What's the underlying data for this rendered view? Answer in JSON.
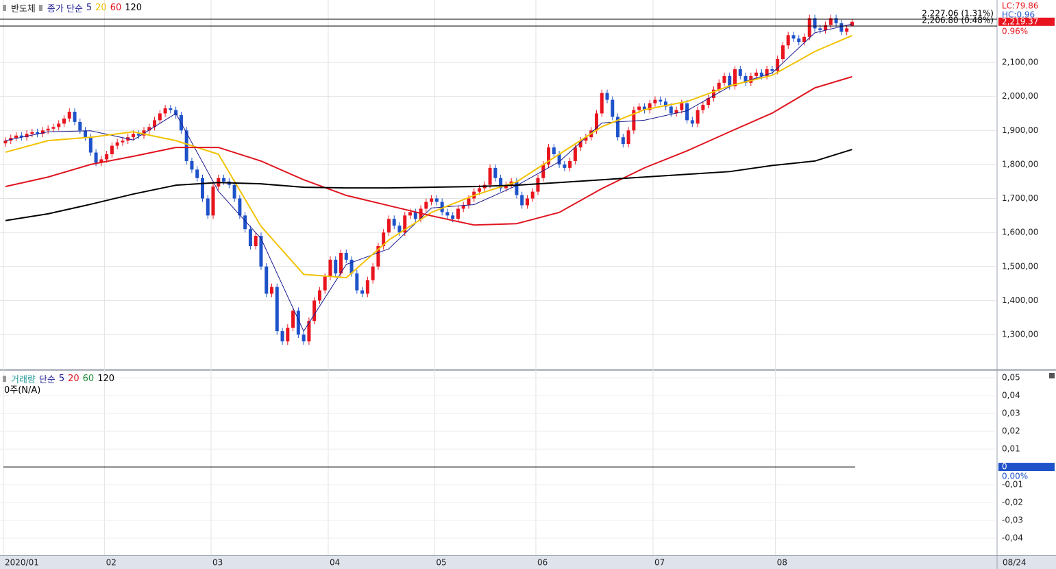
{
  "chart_data": [
    {
      "type": "candlestick",
      "name": "반도체",
      "legend_label": "종가 단순",
      "categories": [
        "2020/01",
        null,
        null,
        null,
        null,
        null,
        null,
        null,
        null,
        null,
        null,
        null,
        null,
        null,
        null,
        null,
        null,
        null,
        null,
        "02",
        null,
        null,
        null,
        null,
        null,
        null,
        null,
        null,
        null,
        null,
        null,
        null,
        null,
        null,
        null,
        null,
        null,
        null,
        null,
        "03",
        null,
        null,
        null,
        null,
        null,
        null,
        null,
        null,
        null,
        null,
        null,
        null,
        null,
        null,
        null,
        null,
        null,
        null,
        null,
        null,
        null,
        "04",
        null,
        null,
        null,
        null,
        null,
        null,
        null,
        null,
        null,
        null,
        null,
        null,
        null,
        null,
        null,
        null,
        null,
        null,
        null,
        "05",
        null,
        null,
        null,
        null,
        null,
        null,
        null,
        null,
        null,
        null,
        null,
        null,
        null,
        null,
        null,
        null,
        null,
        null,
        "06",
        null,
        null,
        null,
        null,
        null,
        null,
        null,
        null,
        null,
        null,
        null,
        null,
        null,
        null,
        null,
        null,
        null,
        null,
        null,
        null,
        null,
        "07",
        null,
        null,
        null,
        null,
        null,
        null,
        null,
        null,
        null,
        null,
        null,
        null,
        null,
        null,
        null,
        null,
        null,
        null,
        null,
        null,
        null,
        null,
        "08",
        null,
        null,
        null,
        null,
        null,
        null,
        null,
        null,
        null,
        null,
        null,
        null,
        null,
        null
      ],
      "open": [
        1862,
        1870,
        1878,
        1885,
        1880,
        1890,
        1895,
        1890,
        1900,
        1905,
        1910,
        1920,
        1935,
        1955,
        1925,
        1900,
        1880,
        1835,
        1805,
        1815,
        1830,
        1855,
        1865,
        1870,
        1880,
        1890,
        1885,
        1900,
        1910,
        1930,
        1950,
        1965,
        1960,
        1945,
        1900,
        1810,
        1785,
        1760,
        1700,
        1650,
        1735,
        1760,
        1750,
        1740,
        1700,
        1650,
        1610,
        1560,
        1590,
        1500,
        1420,
        1440,
        1310,
        1280,
        1320,
        1370,
        1300,
        1280,
        1340,
        1400,
        1430,
        1470,
        1520,
        1480,
        1540,
        1520,
        1480,
        1430,
        1420,
        1460,
        1500,
        1560,
        1600,
        1640,
        1620,
        1600,
        1650,
        1660,
        1640,
        1670,
        1690,
        1700,
        1690,
        1660,
        1650,
        1640,
        1670,
        1680,
        1700,
        1720,
        1730,
        1740,
        1790,
        1760,
        1730,
        1740,
        1750,
        1710,
        1680,
        1700,
        1720,
        1760,
        1800,
        1850,
        1830,
        1800,
        1790,
        1810,
        1850,
        1870,
        1880,
        1900,
        1950,
        2010,
        1990,
        1940,
        1880,
        1860,
        1900,
        1960,
        1970,
        1960,
        1980,
        1990,
        1985,
        1970,
        1950,
        1960,
        1980,
        1930,
        1920,
        1960,
        1975,
        1995,
        2020,
        2040,
        2060,
        2030,
        2080,
        2060,
        2040,
        2060,
        2070,
        2060,
        2080,
        2075,
        2110,
        2150,
        2180,
        2170,
        2160,
        2175,
        2230,
        2200,
        2195,
        2210,
        2230,
        2215,
        2190,
        2208
      ],
      "high": [
        1880,
        1888,
        1895,
        1895,
        1900,
        1905,
        1905,
        1910,
        1915,
        1920,
        1930,
        1945,
        1965,
        1965,
        1935,
        1910,
        1890,
        1845,
        1825,
        1840,
        1865,
        1875,
        1880,
        1890,
        1900,
        1900,
        1910,
        1920,
        1940,
        1960,
        1975,
        1975,
        1970,
        1955,
        1910,
        1820,
        1795,
        1770,
        1710,
        1745,
        1770,
        1770,
        1760,
        1750,
        1710,
        1660,
        1620,
        1600,
        1600,
        1510,
        1450,
        1450,
        1320,
        1330,
        1380,
        1380,
        1310,
        1350,
        1410,
        1440,
        1480,
        1530,
        1530,
        1550,
        1550,
        1530,
        1490,
        1440,
        1470,
        1510,
        1570,
        1610,
        1650,
        1650,
        1630,
        1660,
        1670,
        1670,
        1680,
        1700,
        1710,
        1710,
        1700,
        1670,
        1660,
        1680,
        1690,
        1710,
        1730,
        1740,
        1750,
        1800,
        1800,
        1770,
        1750,
        1760,
        1760,
        1720,
        1710,
        1730,
        1770,
        1810,
        1860,
        1860,
        1840,
        1810,
        1820,
        1860,
        1880,
        1890,
        1910,
        1960,
        2020,
        2020,
        2000,
        1950,
        1890,
        1910,
        1970,
        1980,
        1980,
        1990,
        2000,
        2000,
        1995,
        1980,
        1970,
        1990,
        1990,
        1940,
        1970,
        1985,
        2005,
        2030,
        2050,
        2070,
        2070,
        2090,
        2090,
        2070,
        2070,
        2080,
        2080,
        2090,
        2090,
        2120,
        2160,
        2190,
        2190,
        2180,
        2185,
        2240,
        2240,
        2210,
        2220,
        2240,
        2240,
        2225,
        2210,
        2227.06
      ],
      "low": [
        1852,
        1860,
        1868,
        1870,
        1870,
        1880,
        1880,
        1880,
        1890,
        1895,
        1900,
        1910,
        1925,
        1915,
        1890,
        1870,
        1825,
        1795,
        1795,
        1805,
        1820,
        1845,
        1855,
        1860,
        1870,
        1875,
        1875,
        1890,
        1900,
        1920,
        1940,
        1950,
        1935,
        1890,
        1800,
        1775,
        1750,
        1690,
        1640,
        1640,
        1725,
        1740,
        1730,
        1690,
        1640,
        1600,
        1550,
        1550,
        1490,
        1410,
        1410,
        1300,
        1270,
        1270,
        1310,
        1290,
        1270,
        1270,
        1330,
        1390,
        1420,
        1460,
        1470,
        1470,
        1510,
        1470,
        1420,
        1410,
        1410,
        1450,
        1490,
        1550,
        1590,
        1610,
        1590,
        1590,
        1640,
        1630,
        1630,
        1660,
        1680,
        1680,
        1650,
        1640,
        1630,
        1630,
        1660,
        1670,
        1690,
        1710,
        1720,
        1730,
        1750,
        1720,
        1720,
        1730,
        1700,
        1670,
        1670,
        1690,
        1710,
        1750,
        1790,
        1820,
        1790,
        1780,
        1780,
        1800,
        1840,
        1860,
        1870,
        1890,
        1940,
        1980,
        1930,
        1870,
        1850,
        1850,
        1890,
        1950,
        1950,
        1950,
        1970,
        1975,
        1960,
        1940,
        1940,
        1950,
        1920,
        1910,
        1910,
        1950,
        1965,
        1985,
        2010,
        2030,
        2020,
        2020,
        2050,
        2030,
        2030,
        2050,
        2050,
        2050,
        2065,
        2065,
        2100,
        2140,
        2160,
        2150,
        2150,
        2165,
        2190,
        2185,
        2185,
        2200,
        2205,
        2180,
        2180,
        2206.8
      ],
      "close": [
        1870,
        1878,
        1885,
        1880,
        1890,
        1895,
        1890,
        1900,
        1905,
        1910,
        1920,
        1935,
        1955,
        1925,
        1900,
        1880,
        1835,
        1805,
        1815,
        1830,
        1855,
        1865,
        1870,
        1880,
        1890,
        1885,
        1900,
        1910,
        1930,
        1950,
        1965,
        1960,
        1945,
        1900,
        1810,
        1785,
        1760,
        1700,
        1650,
        1735,
        1760,
        1750,
        1740,
        1700,
        1650,
        1610,
        1560,
        1590,
        1500,
        1420,
        1440,
        1310,
        1280,
        1320,
        1370,
        1300,
        1280,
        1340,
        1400,
        1430,
        1470,
        1520,
        1480,
        1540,
        1520,
        1480,
        1430,
        1420,
        1460,
        1500,
        1560,
        1600,
        1640,
        1620,
        1600,
        1650,
        1660,
        1640,
        1670,
        1690,
        1700,
        1690,
        1660,
        1650,
        1640,
        1670,
        1680,
        1700,
        1720,
        1730,
        1740,
        1790,
        1760,
        1730,
        1740,
        1750,
        1710,
        1680,
        1700,
        1720,
        1760,
        1800,
        1850,
        1830,
        1800,
        1790,
        1810,
        1850,
        1870,
        1880,
        1900,
        1950,
        2010,
        1990,
        1940,
        1880,
        1860,
        1900,
        1960,
        1970,
        1960,
        1980,
        1990,
        1985,
        1970,
        1950,
        1960,
        1980,
        1930,
        1920,
        1960,
        1975,
        1995,
        2020,
        2040,
        2060,
        2030,
        2080,
        2060,
        2040,
        2060,
        2070,
        2060,
        2080,
        2075,
        2110,
        2150,
        2180,
        2170,
        2160,
        2175,
        2230,
        2200,
        2195,
        2210,
        2230,
        2215,
        2190,
        2200,
        2219.37
      ],
      "up_color": "#e8141e",
      "down_color": "#1d52c9",
      "series": [
        {
          "name": "5",
          "color": "#1c1c8f",
          "x": [
            0,
            8,
            16,
            24,
            32,
            40,
            48,
            56,
            64,
            72,
            80,
            88,
            96,
            104,
            112,
            120,
            128,
            136,
            144,
            152,
            159
          ],
          "values": [
            1870,
            1896,
            1899,
            1872,
            1950,
            1721,
            1582,
            1310,
            1506,
            1552,
            1672,
            1682,
            1738,
            1808,
            1922,
            1930,
            1958,
            2029,
            2069,
            2187,
            2213
          ]
        },
        {
          "name": "20",
          "color": "#f2c200",
          "x": [
            0,
            8,
            16,
            24,
            32,
            40,
            48,
            56,
            64,
            72,
            80,
            88,
            96,
            104,
            112,
            120,
            128,
            136,
            144,
            152,
            159
          ],
          "values": [
            1836,
            1870,
            1880,
            1896,
            1870,
            1830,
            1618,
            1477,
            1467,
            1578,
            1659,
            1709,
            1749,
            1830,
            1911,
            1961,
            1985,
            2031,
            2062,
            2132,
            2179
          ]
        },
        {
          "name": "60",
          "color": "#e0141e",
          "x": [
            0,
            8,
            16,
            24,
            32,
            40,
            48,
            56,
            64,
            72,
            80,
            88,
            96,
            104,
            112,
            120,
            128,
            136,
            144,
            152,
            159
          ],
          "values": [
            1735,
            1763,
            1800,
            1824,
            1850,
            1850,
            1810,
            1755,
            1709,
            1679,
            1649,
            1622,
            1626,
            1659,
            1729,
            1790,
            1840,
            1896,
            1951,
            2025,
            2058
          ]
        },
        {
          "name": "120",
          "color": "#000000",
          "x": [
            0,
            8,
            16,
            24,
            32,
            40,
            48,
            56,
            64,
            72,
            80,
            88,
            96,
            104,
            112,
            120,
            128,
            136,
            144,
            152,
            159
          ],
          "values": [
            1635,
            1655,
            1683,
            1713,
            1739,
            1747,
            1743,
            1733,
            1731,
            1731,
            1733,
            1735,
            1739,
            1747,
            1755,
            1763,
            1771,
            1779,
            1797,
            1810,
            1844
          ]
        }
      ],
      "ylim": [
        1199.3,
        2283.4
      ],
      "yticks": [
        {
          "value": 1300,
          "label": "1,300,00"
        },
        {
          "value": 1400,
          "label": "1,400,00"
        },
        {
          "value": 1500,
          "label": "1,500,00"
        },
        {
          "value": 1600,
          "label": "1,600,00"
        },
        {
          "value": 1700,
          "label": "1,700,00"
        },
        {
          "value": 1800,
          "label": "1,800,00"
        },
        {
          "value": 1900,
          "label": "1,900,00"
        },
        {
          "value": 2000,
          "label": "2,000,00"
        },
        {
          "value": 2100,
          "label": "2,100,00"
        }
      ],
      "grid": true,
      "reference_lines": [
        {
          "value": 2227.06,
          "label": "2,227.06 (1.31%)"
        },
        {
          "value": 2206.8,
          "label": "2,206.80 (0.48%)"
        }
      ],
      "last_price": {
        "value": 2219.37,
        "label": "2,219.37"
      },
      "side_labels": [
        {
          "text": "LC:79.86",
          "color": "#e8141e"
        },
        {
          "text": "HC:0.96",
          "color": "#1d52c9"
        },
        {
          "text": "0.96%",
          "color": "#e8141e"
        }
      ]
    },
    {
      "type": "volume",
      "name": "거래량",
      "name_color": "#2a9d9d",
      "legend_label": "단순",
      "legend": [
        {
          "name": "5",
          "color": "#1c1c8f"
        },
        {
          "name": "20",
          "color": "#e8141e"
        },
        {
          "name": "60",
          "color": "#1a8a3a"
        },
        {
          "name": "120",
          "color": "#000000"
        }
      ],
      "status": "0주(N/A)",
      "ylim": [
        -0.0496,
        0.0539
      ],
      "yticks": [
        {
          "value": 0.05,
          "label": "0,05"
        },
        {
          "value": 0.04,
          "label": "0,04"
        },
        {
          "value": 0.03,
          "label": "0,03"
        },
        {
          "value": 0.02,
          "label": "0,02"
        },
        {
          "value": 0.01,
          "label": "0,01"
        },
        0,
        {
          "value": -0.01,
          "label": "-0,01"
        },
        {
          "value": -0.02,
          "label": "-0,02"
        },
        {
          "value": -0.03,
          "label": "-0,03"
        },
        {
          "value": -0.04,
          "label": "-0,04"
        }
      ],
      "zero_percent": "0.00%",
      "current_date": "08/24"
    }
  ]
}
